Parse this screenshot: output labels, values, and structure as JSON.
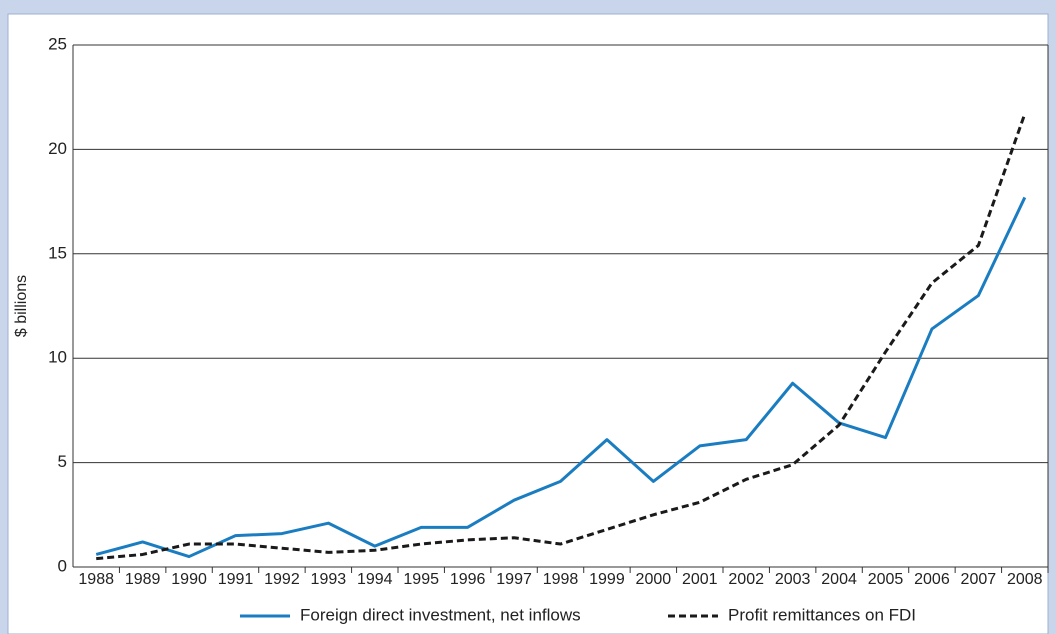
{
  "chart_data": {
    "type": "line",
    "y_label": "$ billions",
    "categories": [
      "1988",
      "1989",
      "1990",
      "1991",
      "1992",
      "1993",
      "1994",
      "1995",
      "1996",
      "1997",
      "1998",
      "1999",
      "2000",
      "2001",
      "2002",
      "2003",
      "2004",
      "2005",
      "2006",
      "2007",
      "2008"
    ],
    "series": [
      {
        "name": "Foreign direct investment, net inflows",
        "color": "#1b7dc1",
        "dashed": false,
        "values": [
          0.6,
          1.2,
          0.5,
          1.5,
          1.6,
          2.1,
          1.0,
          1.9,
          1.9,
          3.2,
          4.1,
          6.1,
          4.1,
          5.8,
          6.1,
          8.8,
          6.9,
          6.2,
          11.4,
          13.0,
          17.7
        ]
      },
      {
        "name": "Profit remittances on FDI",
        "color": "#1a1a1a",
        "dashed": true,
        "values": [
          0.4,
          0.6,
          1.1,
          1.1,
          0.9,
          0.7,
          0.8,
          1.1,
          1.3,
          1.4,
          1.1,
          1.8,
          2.5,
          3.1,
          4.2,
          4.9,
          6.8,
          10.3,
          13.6,
          15.4,
          21.7
        ]
      }
    ],
    "ylim": [
      0,
      25
    ],
    "yticks": [
      0,
      5,
      10,
      15,
      20,
      25
    ],
    "grid": true
  }
}
